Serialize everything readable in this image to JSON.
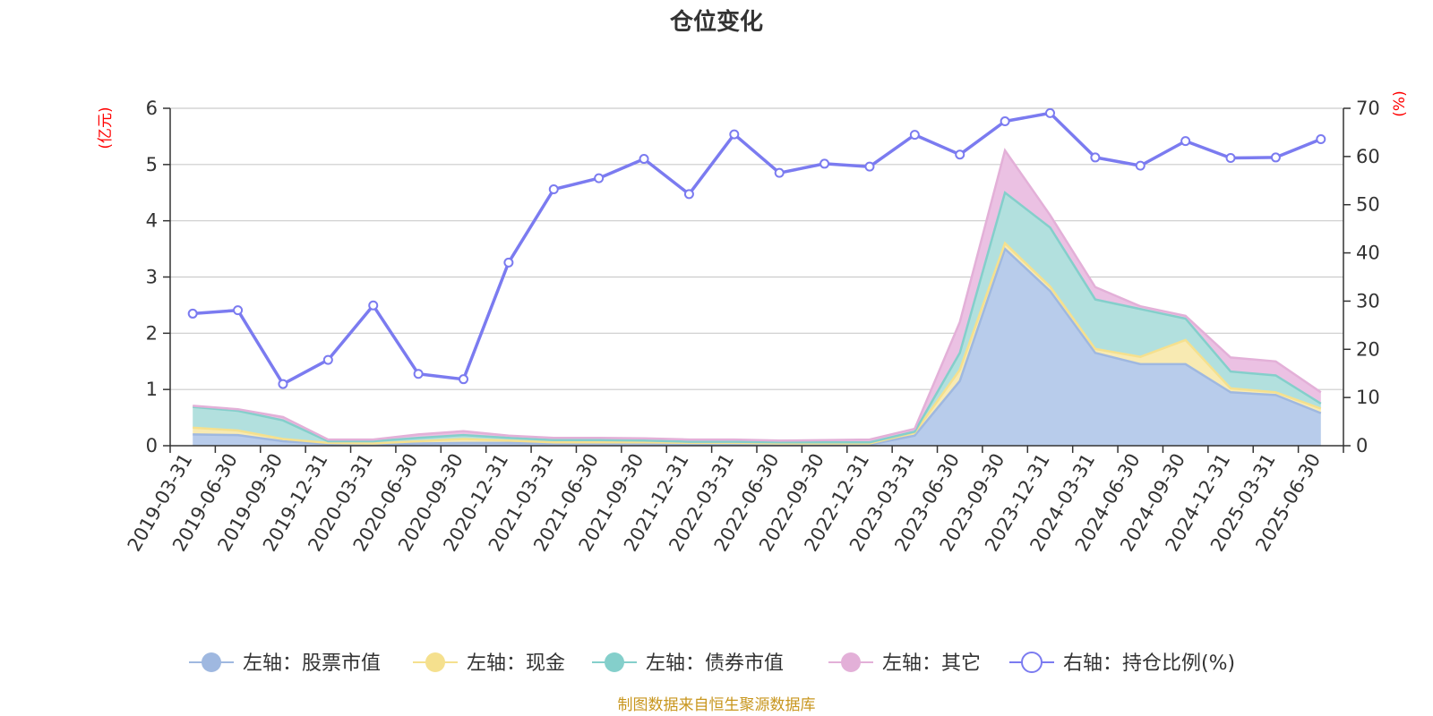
{
  "chart_data": {
    "type": "area",
    "title": "仓位变化",
    "y_left_unit": "(亿元)",
    "y_right_unit": "(%)",
    "ylim_left": [
      0,
      6
    ],
    "ylim_right": [
      0,
      70
    ],
    "yticks_left": [
      "0",
      "1",
      "2",
      "3",
      "4",
      "5",
      "6"
    ],
    "yticks_right": [
      "0",
      "10",
      "20",
      "30",
      "40",
      "50",
      "60",
      "70"
    ],
    "grid": true,
    "legend_position": "bottom",
    "categories": [
      "2019-03-31",
      "2019-06-30",
      "2019-09-30",
      "2019-12-31",
      "2020-03-31",
      "2020-06-30",
      "2020-09-30",
      "2020-12-31",
      "2021-03-31",
      "2021-06-30",
      "2021-09-30",
      "2021-12-31",
      "2022-03-31",
      "2022-06-30",
      "2022-09-30",
      "2022-12-31",
      "2023-03-31",
      "2023-06-30",
      "2023-09-30",
      "2023-12-31",
      "2024-03-31",
      "2024-06-30",
      "2024-09-30",
      "2024-12-31",
      "2025-03-31",
      "2025-06-30"
    ],
    "series": [
      {
        "name": "左轴：股票市值",
        "axis": "left",
        "stack": true,
        "color": "#9fb8e0",
        "fill": "#b8cceb",
        "values": [
          0.2,
          0.19,
          0.08,
          0.03,
          0.02,
          0.04,
          0.05,
          0.05,
          0.04,
          0.04,
          0.04,
          0.03,
          0.03,
          0.02,
          0.02,
          0.02,
          0.18,
          1.15,
          3.5,
          2.75,
          1.65,
          1.45,
          1.45,
          0.95,
          0.9,
          0.58
        ]
      },
      {
        "name": "左轴：现金",
        "axis": "left",
        "stack": true,
        "color": "#f5e08e",
        "fill": "#f8eab2",
        "values": [
          0.12,
          0.08,
          0.04,
          0.02,
          0.02,
          0.04,
          0.07,
          0.04,
          0.02,
          0.02,
          0.02,
          0.02,
          0.02,
          0.02,
          0.02,
          0.02,
          0.05,
          0.2,
          0.1,
          0.08,
          0.07,
          0.13,
          0.43,
          0.07,
          0.05,
          0.08
        ]
      },
      {
        "name": "左轴：债券市值",
        "axis": "left",
        "stack": true,
        "color": "#84cfcb",
        "fill": "#b2e0de",
        "values": [
          0.37,
          0.35,
          0.33,
          0.03,
          0.04,
          0.06,
          0.07,
          0.05,
          0.04,
          0.04,
          0.03,
          0.02,
          0.02,
          0.02,
          0.02,
          0.02,
          0.02,
          0.3,
          0.9,
          1.05,
          0.88,
          0.85,
          0.38,
          0.3,
          0.3,
          0.09
        ]
      },
      {
        "name": "左轴：其它",
        "axis": "left",
        "stack": true,
        "color": "#e3b0d8",
        "fill": "#ebc1e3",
        "values": [
          0.02,
          0.03,
          0.06,
          0.03,
          0.03,
          0.06,
          0.07,
          0.04,
          0.04,
          0.04,
          0.04,
          0.04,
          0.04,
          0.03,
          0.04,
          0.05,
          0.05,
          0.55,
          0.75,
          0.22,
          0.22,
          0.05,
          0.05,
          0.25,
          0.25,
          0.2
        ]
      },
      {
        "name": "右轴：持仓比例(%)",
        "axis": "right",
        "type": "line",
        "color": "#7b7bf0",
        "values": [
          27.4,
          28.1,
          12.8,
          17.8,
          29.1,
          14.9,
          13.8,
          38,
          53.2,
          55.5,
          59.5,
          52.2,
          64.6,
          56.6,
          58.5,
          57.9,
          64.5,
          60.4,
          67.3,
          69,
          59.8,
          58.1,
          63.2,
          59.7,
          59.8,
          63.6
        ]
      }
    ]
  },
  "footer": {
    "source_text": "制图数据来自恒生聚源数据库"
  }
}
